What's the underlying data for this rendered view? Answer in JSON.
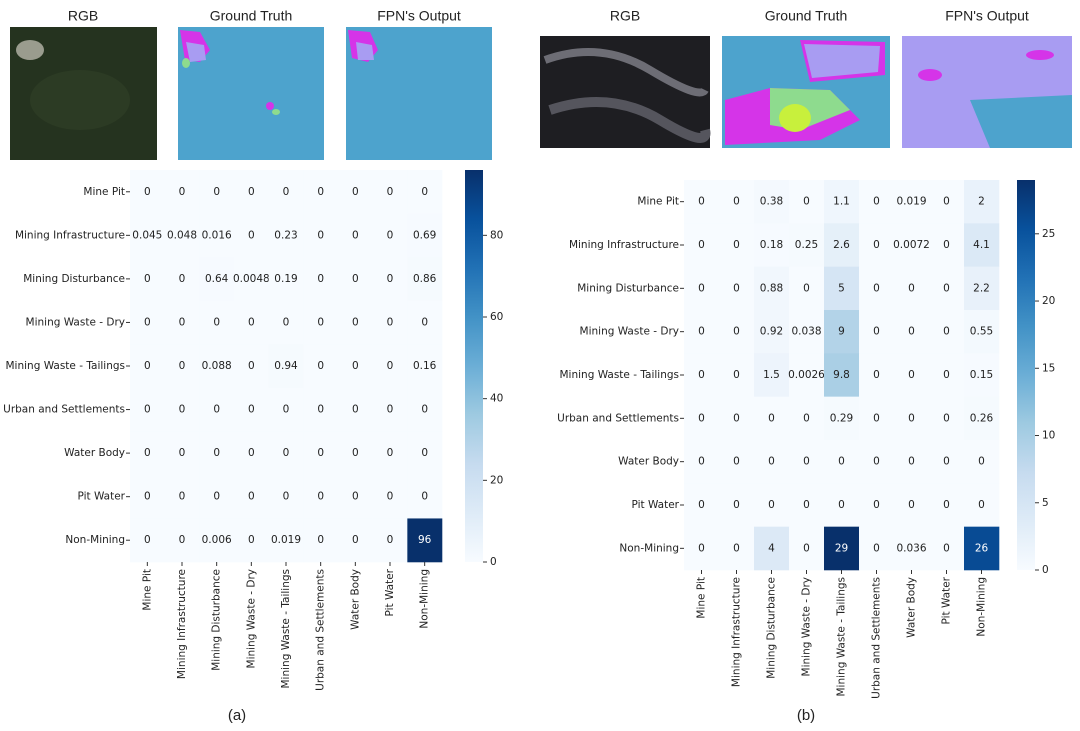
{
  "chart_data": [
    {
      "type": "heatmap",
      "image_titles": [
        "RGB",
        "Ground Truth",
        "FPN's Output"
      ],
      "caption": "(a)",
      "y_categories": [
        "Mine Pit",
        "Mining Infrastructure",
        "Mining Disturbance",
        "Mining Waste - Dry",
        "Mining Waste - Tailings",
        "Urban and Settlements",
        "Water Body",
        "Pit Water",
        "Non-Mining"
      ],
      "x_categories": [
        "Mine Pit",
        "Mining Infrastructure",
        "Mining Disturbance",
        "Mining Waste - Dry",
        "Mining Waste - Tailings",
        "Urban and Settlements",
        "Water Body",
        "Pit Water",
        "Non-Mining"
      ],
      "values": [
        [
          0,
          0,
          0,
          0,
          0,
          0,
          0,
          0,
          0
        ],
        [
          0.045,
          0.048,
          0.016,
          0,
          0.23,
          0,
          0,
          0,
          0.69
        ],
        [
          0,
          0,
          0.64,
          0.0048,
          0.19,
          0,
          0,
          0,
          0.86
        ],
        [
          0,
          0,
          0,
          0,
          0,
          0,
          0,
          0,
          0
        ],
        [
          0,
          0,
          0.088,
          0,
          0.94,
          0,
          0,
          0,
          0.16
        ],
        [
          0,
          0,
          0,
          0,
          0,
          0,
          0,
          0,
          0
        ],
        [
          0,
          0,
          0,
          0,
          0,
          0,
          0,
          0,
          0
        ],
        [
          0,
          0,
          0,
          0,
          0,
          0,
          0,
          0,
          0
        ],
        [
          0,
          0,
          0.006,
          0,
          0.019,
          0,
          0,
          0,
          96
        ]
      ],
      "colormap": "Blues",
      "clim": [
        0,
        96
      ],
      "cticks": [
        0,
        20,
        40,
        60,
        80
      ]
    },
    {
      "type": "heatmap",
      "image_titles": [
        "RGB",
        "Ground Truth",
        "FPN's Output"
      ],
      "caption": "(b)",
      "y_categories": [
        "Mine Pit",
        "Mining Infrastructure",
        "Mining Disturbance",
        "Mining Waste - Dry",
        "Mining Waste - Tailings",
        "Urban and Settlements",
        "Water Body",
        "Pit Water",
        "Non-Mining"
      ],
      "x_categories": [
        "Mine Pit",
        "Mining Infrastructure",
        "Mining Disturbance",
        "Mining Waste - Dry",
        "Mining Waste - Tailings",
        "Urban and Settlements",
        "Water Body",
        "Pit Water",
        "Non-Mining"
      ],
      "values": [
        [
          0,
          0,
          0.38,
          0,
          1.1,
          0,
          0.019,
          0,
          2
        ],
        [
          0,
          0,
          0.18,
          0.25,
          2.6,
          0,
          0.0072,
          0,
          4.1
        ],
        [
          0,
          0,
          0.88,
          0,
          5,
          0,
          0,
          0,
          2.2
        ],
        [
          0,
          0,
          0.92,
          0.038,
          9,
          0,
          0,
          0,
          0.55
        ],
        [
          0,
          0,
          1.5,
          0.0026,
          9.8,
          0,
          0,
          0,
          0.15
        ],
        [
          0,
          0,
          0,
          0,
          0.29,
          0,
          0,
          0,
          0.26
        ],
        [
          0,
          0,
          0,
          0,
          0,
          0,
          0,
          0,
          0
        ],
        [
          0,
          0,
          0,
          0,
          0,
          0,
          0,
          0,
          0
        ],
        [
          0,
          0,
          4,
          0,
          29,
          0,
          0.036,
          0,
          26
        ]
      ],
      "colormap": "Blues",
      "clim": [
        0,
        29
      ],
      "cticks": [
        0,
        5,
        10,
        15,
        20,
        25
      ]
    }
  ]
}
